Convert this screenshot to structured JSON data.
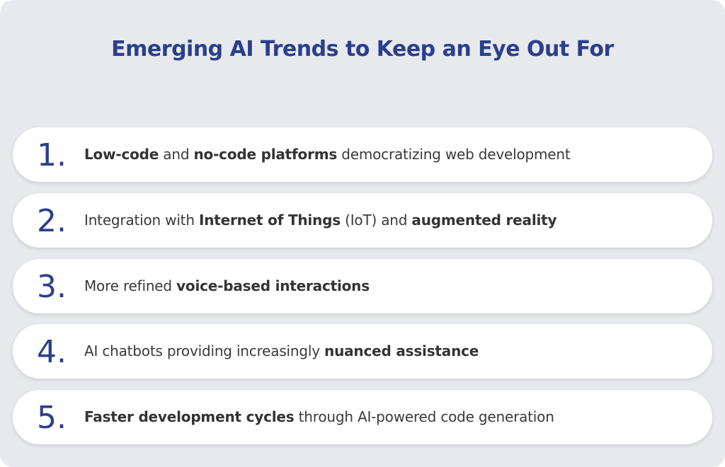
{
  "title": "Emerging AI Trends to Keep an Eye Out For",
  "colors": {
    "background": "#e8e9ec",
    "accent": "#2a3f8c",
    "row_background": "#ffffff",
    "text": "#3a3a3a"
  },
  "items": [
    {
      "number": "1.",
      "segments": [
        {
          "text": "Low-code",
          "bold": true
        },
        {
          "text": " and ",
          "bold": false
        },
        {
          "text": "no-code platforms",
          "bold": true
        },
        {
          "text": " democratizing web development",
          "bold": false
        }
      ]
    },
    {
      "number": "2.",
      "segments": [
        {
          "text": "Integration with ",
          "bold": false
        },
        {
          "text": "Internet of Things",
          "bold": true
        },
        {
          "text": " (IoT) and ",
          "bold": false
        },
        {
          "text": "augmented reality",
          "bold": true
        }
      ]
    },
    {
      "number": "3.",
      "segments": [
        {
          "text": "More refined ",
          "bold": false
        },
        {
          "text": "voice-based interactions",
          "bold": true
        }
      ]
    },
    {
      "number": "4.",
      "segments": [
        {
          "text": "AI chatbots providing increasingly ",
          "bold": false
        },
        {
          "text": "nuanced assistance",
          "bold": true
        }
      ]
    },
    {
      "number": "5.",
      "segments": [
        {
          "text": "Faster development cycles",
          "bold": true
        },
        {
          "text": " through AI-powered code generation",
          "bold": false
        }
      ]
    }
  ]
}
